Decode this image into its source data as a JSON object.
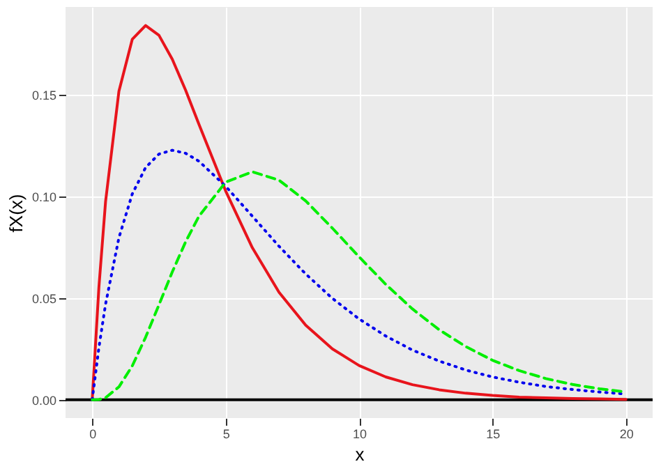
{
  "chart_data": {
    "type": "line",
    "xlabel": "x",
    "ylabel": "fX(x)",
    "x": [
      0,
      0.25,
      0.5,
      1,
      1.5,
      2,
      2.5,
      3,
      3.5,
      4,
      5,
      6,
      7,
      8,
      9,
      10,
      11,
      12,
      13,
      14,
      15,
      16,
      17,
      18,
      19,
      20
    ],
    "series": [
      {
        "color": "#e8141c",
        "line_style": "solid",
        "values": [
          0,
          0.0552,
          0.0974,
          0.1516,
          0.1771,
          0.1839,
          0.1791,
          0.1673,
          0.1521,
          0.1353,
          0.1026,
          0.0747,
          0.0528,
          0.0366,
          0.025,
          0.0168,
          0.0112,
          0.0074,
          0.0049,
          0.0032,
          0.0021,
          0.0013,
          0.0009,
          0.0006,
          0.0004,
          0.0002
        ]
      },
      {
        "color": "#0000ee",
        "line_style": "dotted",
        "values": [
          0,
          0.0256,
          0.047,
          0.0796,
          0.1011,
          0.1141,
          0.1207,
          0.1226,
          0.1211,
          0.1172,
          0.1049,
          0.0902,
          0.0754,
          0.0618,
          0.0498,
          0.0397,
          0.0313,
          0.0244,
          0.019,
          0.0146,
          0.0112,
          0.0086,
          0.0065,
          0.005,
          0.0038,
          0.0028
        ]
      },
      {
        "color": "#00ee00",
        "line_style": "dashed",
        "values": [
          0,
          0.0001,
          0.001,
          0.0063,
          0.0166,
          0.0307,
          0.0466,
          0.0628,
          0.0776,
          0.0902,
          0.1069,
          0.112,
          0.1079,
          0.0977,
          0.0843,
          0.0702,
          0.0567,
          0.0446,
          0.0344,
          0.0261,
          0.0194,
          0.0143,
          0.0104,
          0.0075,
          0.0054,
          0.0038
        ]
      }
    ],
    "xlim": [
      -1,
      21
    ],
    "xticks": [
      0,
      5,
      10,
      15,
      20
    ],
    "ylim": [
      -0.009,
      0.193
    ],
    "yticks": [
      {
        "value": 0,
        "label": "0.00"
      },
      {
        "value": 0.05,
        "label": "0.05"
      },
      {
        "value": 0.1,
        "label": "0.10"
      },
      {
        "value": 0.15,
        "label": "0.15"
      }
    ],
    "ref_lines": [
      {
        "axis": "y",
        "value": 0,
        "color": "#000000"
      }
    ],
    "grid": true
  }
}
